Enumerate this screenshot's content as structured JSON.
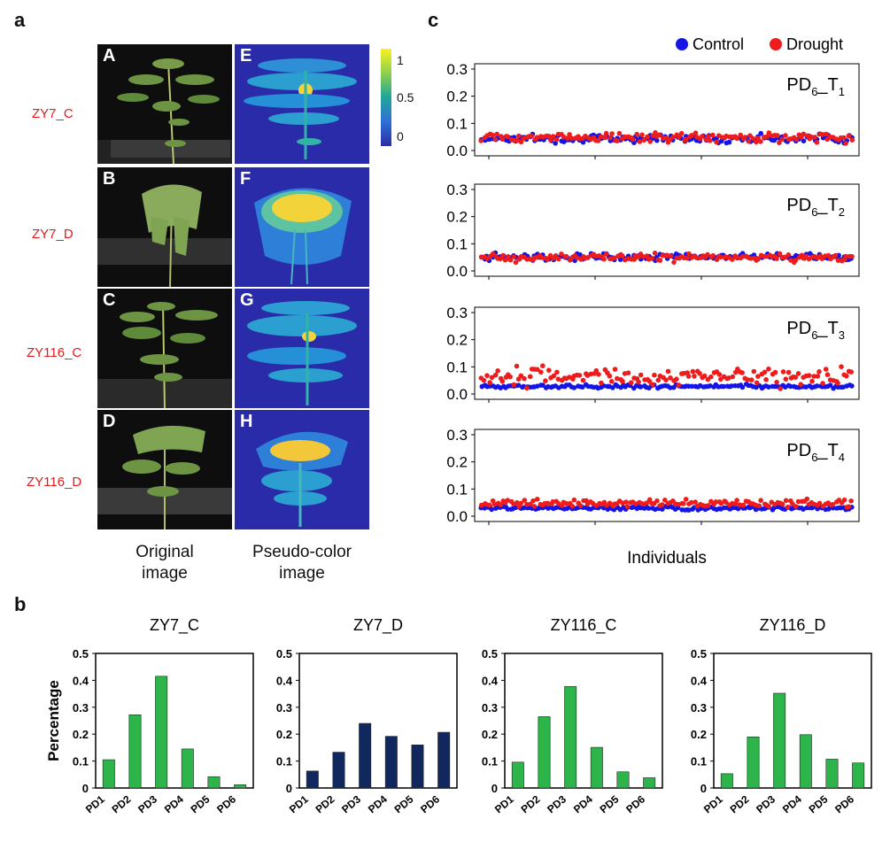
{
  "panels": {
    "a": "a",
    "b": "b",
    "c": "c"
  },
  "panel_a": {
    "rows": [
      {
        "label": "ZY7_C",
        "orig_letter": "A",
        "pseudo_letter": "E"
      },
      {
        "label": "ZY7_D",
        "orig_letter": "B",
        "pseudo_letter": "F"
      },
      {
        "label": "ZY116_C",
        "orig_letter": "C",
        "pseudo_letter": "G"
      },
      {
        "label": "ZY116_D",
        "orig_letter": "D",
        "pseudo_letter": "H"
      }
    ],
    "colorbar_ticks": [
      "1",
      "0.5",
      "0"
    ],
    "caption_original": [
      "Original",
      "image"
    ],
    "caption_pseudo": [
      "Pseudo-color",
      "image"
    ]
  },
  "chart_data": [
    {
      "type": "bar",
      "title": "ZY7_C",
      "ylabel": "Percentage",
      "categories": [
        "PD1",
        "PD2",
        "PD3",
        "PD4",
        "PD5",
        "PD6"
      ],
      "values": [
        0.105,
        0.272,
        0.415,
        0.145,
        0.042,
        0.012
      ],
      "ylim": [
        0,
        0.5
      ],
      "yticks": [
        "0",
        "0.1",
        "0.2",
        "0.3",
        "0.4",
        "0.5"
      ],
      "color": "#2db44a"
    },
    {
      "type": "bar",
      "title": "ZY7_D",
      "ylabel": "",
      "categories": [
        "PD1",
        "PD2",
        "PD3",
        "PD4",
        "PD5",
        "PD6"
      ],
      "values": [
        0.063,
        0.133,
        0.24,
        0.192,
        0.16,
        0.207
      ],
      "ylim": [
        0,
        0.5
      ],
      "yticks": [
        "0",
        "0.1",
        "0.2",
        "0.3",
        "0.4",
        "0.5"
      ],
      "color": "#11285e"
    },
    {
      "type": "bar",
      "title": "ZY116_C",
      "ylabel": "",
      "categories": [
        "PD1",
        "PD2",
        "PD3",
        "PD4",
        "PD5",
        "PD6"
      ],
      "values": [
        0.096,
        0.265,
        0.377,
        0.151,
        0.06,
        0.038
      ],
      "ylim": [
        0,
        0.5
      ],
      "yticks": [
        "0",
        "0.1",
        "0.2",
        "0.3",
        "0.4",
        "0.5"
      ],
      "color": "#2db44a"
    },
    {
      "type": "bar",
      "title": "ZY116_D",
      "ylabel": "",
      "categories": [
        "PD1",
        "PD2",
        "PD3",
        "PD4",
        "PD5",
        "PD6"
      ],
      "values": [
        0.053,
        0.19,
        0.352,
        0.198,
        0.107,
        0.093
      ],
      "ylim": [
        0,
        0.5
      ],
      "yticks": [
        "0",
        "0.1",
        "0.2",
        "0.3",
        "0.4",
        "0.5"
      ],
      "color": "#2db44a"
    },
    {
      "type": "scatter",
      "legend": [
        {
          "name": "Control",
          "color": "#1414e6"
        },
        {
          "name": "Drought",
          "color": "#ee1c1c"
        }
      ],
      "legend_position": "top-right",
      "xlabel": "Individuals",
      "ylim": [
        0,
        0.3
      ],
      "yticks": [
        "0.0",
        "0.1",
        "0.2",
        "0.3"
      ],
      "subplots": [
        {
          "label_main": "PD",
          "label_sub1": "6",
          "label_mid": "_T",
          "label_sub2": "1",
          "control": {
            "center": 0.045,
            "spread": 0.014
          },
          "drought": {
            "center": 0.048,
            "spread": 0.016
          }
        },
        {
          "label_main": "PD",
          "label_sub1": "6",
          "label_mid": "_T",
          "label_sub2": "2",
          "control": {
            "center": 0.052,
            "spread": 0.012
          },
          "drought": {
            "center": 0.05,
            "spread": 0.013
          }
        },
        {
          "label_main": "PD",
          "label_sub1": "6",
          "label_mid": "_T",
          "label_sub2": "3",
          "control": {
            "center": 0.028,
            "spread": 0.006
          },
          "drought": {
            "center": 0.065,
            "spread": 0.03
          }
        },
        {
          "label_main": "PD",
          "label_sub1": "6",
          "label_mid": "_T",
          "label_sub2": "4",
          "control": {
            "center": 0.03,
            "spread": 0.006
          },
          "drought": {
            "center": 0.048,
            "spread": 0.013
          }
        }
      ]
    }
  ]
}
